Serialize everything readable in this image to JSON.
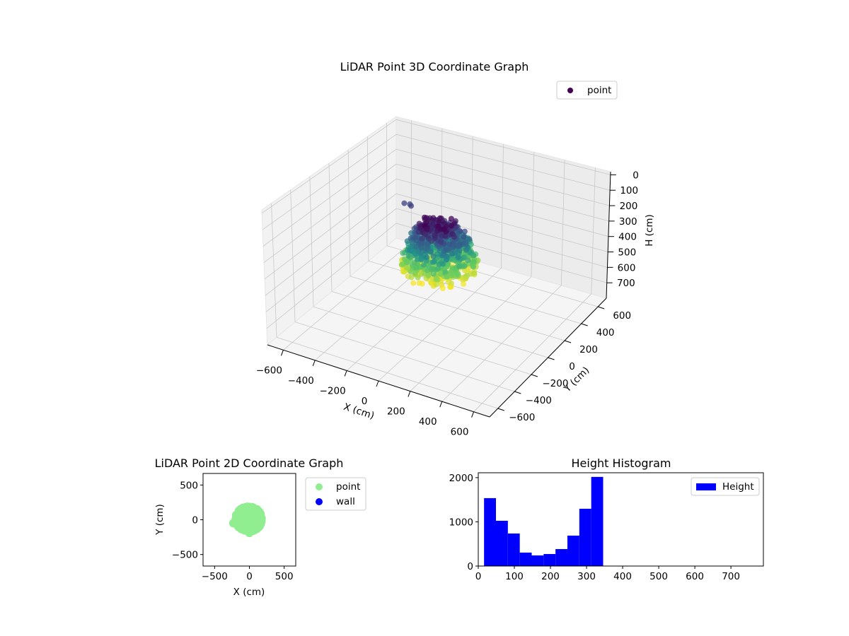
{
  "chart_data": [
    {
      "type": "scatter",
      "title": "LiDAR Point 3D Coordinate Graph",
      "xlabel": "X (cm)",
      "ylabel": "Y (cm)",
      "zlabel": "H (cm)",
      "xticks": [
        -600,
        -400,
        -200,
        0,
        200,
        400,
        600
      ],
      "yticks": [
        -600,
        -400,
        -200,
        0,
        200,
        400,
        600
      ],
      "zticks": [
        0,
        100,
        200,
        300,
        400,
        500,
        600,
        700
      ],
      "xlim": [
        -700,
        700
      ],
      "ylim": [
        -700,
        700
      ],
      "zlim": [
        -20,
        800
      ],
      "z_inverted": true,
      "legend": [
        {
          "label": "point",
          "color": "#440154"
        }
      ],
      "legend_position": "top-right",
      "colormap": "viridis",
      "cloud": {
        "center_x": 0,
        "center_y": 0,
        "h_min": 150,
        "h_max": 450,
        "radius": 220
      }
    },
    {
      "type": "scatter",
      "title": "LiDAR Point 2D Coordinate Graph",
      "xlabel": "X (cm)",
      "ylabel": "Y (cm)",
      "xticks": [
        -500,
        0,
        500
      ],
      "yticks": [
        500,
        0,
        -500
      ],
      "xlim": [
        -666,
        666
      ],
      "ylim": [
        -666,
        666
      ],
      "legend": [
        {
          "label": "point",
          "color": "#90ee90"
        },
        {
          "label": "wall",
          "color": "#0000ff"
        }
      ],
      "legend_position": "outside-right"
    },
    {
      "type": "bar",
      "title": "Height Histogram",
      "bin_edges": [
        16,
        49,
        82,
        115,
        148,
        181,
        214,
        247,
        280,
        313,
        346
      ],
      "values": [
        1536,
        1024,
        736,
        304,
        240,
        272,
        384,
        688,
        1296,
        2016
      ],
      "color": "#0000ff",
      "xticks": [
        0,
        100,
        200,
        300,
        400,
        500,
        600,
        700
      ],
      "yticks": [
        0,
        1000,
        2000
      ],
      "xlim": [
        0,
        790
      ],
      "ylim": [
        0,
        2110
      ],
      "legend": [
        {
          "label": "Height",
          "color": "#0000ff"
        }
      ],
      "legend_position": "top-right"
    }
  ]
}
